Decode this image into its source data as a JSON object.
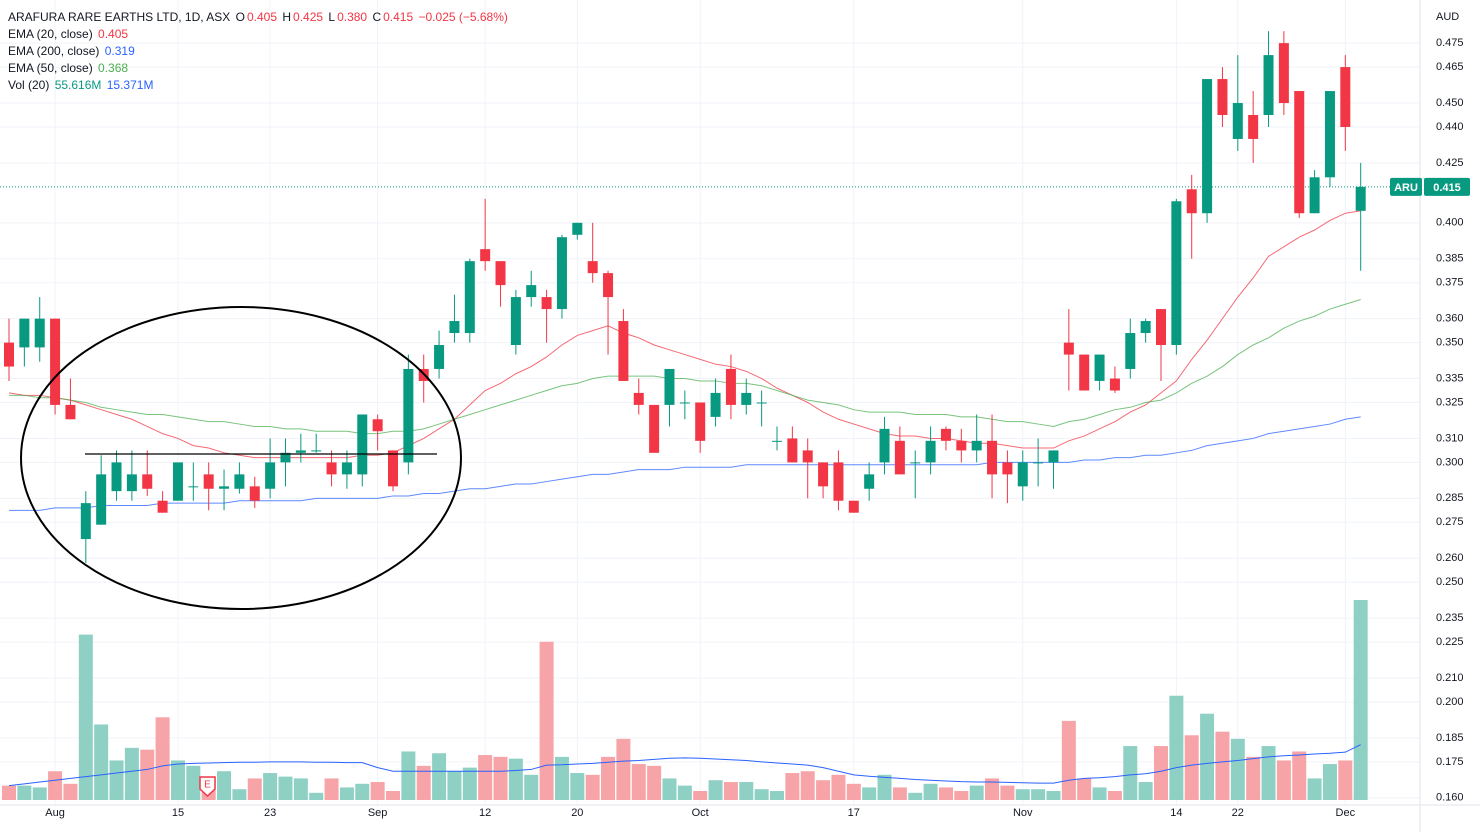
{
  "chart_data": {
    "type": "candlestick",
    "title": "ARAFURA RARE EARTHS LTD, 1D, ASX",
    "ohlc_legend": {
      "o_label": "O",
      "o": "0.405",
      "h_label": "H",
      "h": "0.425",
      "l_label": "L",
      "l": "0.380",
      "c_label": "C",
      "c": "0.415",
      "change": "−0.025 (−5.68%)"
    },
    "currency": "AUD",
    "symbol": "ARU",
    "last_price_label": "0.415",
    "earnings_marker": "E",
    "up_color": "#089981",
    "down_color": "#f23645",
    "volume_up_color": "#8fd0c5",
    "volume_down_color": "#f7a4a8",
    "grid": true,
    "categories": [
      null,
      null,
      null,
      "Aug",
      null,
      null,
      null,
      null,
      null,
      null,
      null,
      "15",
      null,
      null,
      null,
      null,
      null,
      "23",
      null,
      null,
      null,
      null,
      null,
      null,
      "Sep",
      null,
      null,
      null,
      null,
      null,
      null,
      "12",
      null,
      null,
      null,
      null,
      null,
      "20",
      null,
      null,
      null,
      null,
      null,
      null,
      null,
      "Oct",
      null,
      null,
      null,
      null,
      null,
      null,
      null,
      null,
      null,
      "17",
      null,
      null,
      null,
      null,
      null,
      null,
      null,
      null,
      null,
      null,
      "Nov",
      null,
      null,
      null,
      null,
      null,
      null,
      null,
      null,
      null,
      "14",
      null,
      null,
      null,
      "22",
      null,
      null,
      null,
      null,
      null,
      null,
      "Dec",
      null
    ],
    "open": [
      0.35,
      0.348,
      0.348,
      0.36,
      0.324,
      0.268,
      0.274,
      0.288,
      0.288,
      0.295,
      0.284,
      0.284,
      0.29,
      0.295,
      0.289,
      0.289,
      0.29,
      0.289,
      0.3,
      0.304,
      0.305,
      0.3,
      0.295,
      0.295,
      0.318,
      0.305,
      0.3,
      0.339,
      0.339,
      0.354,
      0.354,
      0.389,
      0.384,
      0.349,
      0.369,
      0.369,
      0.364,
      0.395,
      0.384,
      0.379,
      0.359,
      0.329,
      0.324,
      0.324,
      0.325,
      0.325,
      0.319,
      0.339,
      0.324,
      0.325,
      0.309,
      0.31,
      0.305,
      0.3,
      0.3,
      0.284,
      0.289,
      0.3,
      0.309,
      0.3,
      0.3,
      0.314,
      0.309,
      0.305,
      0.309,
      0.3,
      0.29,
      0.3,
      0.3,
      0.35,
      0.345,
      0.334,
      0.335,
      0.339,
      0.354,
      0.364,
      0.349,
      0.414,
      0.404,
      0.46,
      0.435,
      0.445,
      0.445,
      0.475,
      0.455,
      0.404,
      0.419,
      0.465,
      0.405
    ],
    "high": [
      0.36,
      0.36,
      0.369,
      0.36,
      0.335,
      0.288,
      0.303,
      0.305,
      0.305,
      0.305,
      0.288,
      0.3,
      0.3,
      0.3,
      0.297,
      0.3,
      0.294,
      0.31,
      0.31,
      0.312,
      0.312,
      0.305,
      0.305,
      0.32,
      0.32,
      0.305,
      0.345,
      0.345,
      0.355,
      0.37,
      0.385,
      0.41,
      0.384,
      0.372,
      0.38,
      0.372,
      0.395,
      0.4,
      0.4,
      0.38,
      0.364,
      0.335,
      0.324,
      0.339,
      0.33,
      0.325,
      0.335,
      0.345,
      0.335,
      0.33,
      0.315,
      0.315,
      0.31,
      0.3,
      0.305,
      0.284,
      0.3,
      0.319,
      0.315,
      0.305,
      0.315,
      0.315,
      0.314,
      0.32,
      0.32,
      0.305,
      0.305,
      0.31,
      0.305,
      0.364,
      0.345,
      0.345,
      0.34,
      0.36,
      0.36,
      0.364,
      0.41,
      0.42,
      0.46,
      0.465,
      0.47,
      0.455,
      0.48,
      0.48,
      0.455,
      0.422,
      0.455,
      0.47,
      0.425
    ],
    "low": [
      0.334,
      0.34,
      0.342,
      0.32,
      0.318,
      0.258,
      0.274,
      0.284,
      0.284,
      0.286,
      0.279,
      0.284,
      0.284,
      0.28,
      0.28,
      0.287,
      0.281,
      0.285,
      0.29,
      0.3,
      0.304,
      0.29,
      0.289,
      0.29,
      0.305,
      0.288,
      0.295,
      0.325,
      0.335,
      0.35,
      0.35,
      0.38,
      0.365,
      0.345,
      0.365,
      0.35,
      0.36,
      0.393,
      0.375,
      0.345,
      0.334,
      0.32,
      0.304,
      0.315,
      0.318,
      0.304,
      0.315,
      0.318,
      0.32,
      0.315,
      0.305,
      0.3,
      0.285,
      0.285,
      0.28,
      0.279,
      0.284,
      0.295,
      0.295,
      0.285,
      0.295,
      0.305,
      0.3,
      0.3,
      0.285,
      0.283,
      0.284,
      0.29,
      0.289,
      0.33,
      0.33,
      0.33,
      0.329,
      0.335,
      0.35,
      0.334,
      0.345,
      0.385,
      0.4,
      0.44,
      0.43,
      0.425,
      0.44,
      0.445,
      0.402,
      0.404,
      0.415,
      0.43,
      0.38
    ],
    "close": [
      0.34,
      0.36,
      0.36,
      0.324,
      0.318,
      0.283,
      0.295,
      0.3,
      0.295,
      0.289,
      0.279,
      0.3,
      0.29,
      0.289,
      0.29,
      0.295,
      0.284,
      0.3,
      0.304,
      0.305,
      0.305,
      0.295,
      0.3,
      0.32,
      0.313,
      0.29,
      0.339,
      0.334,
      0.349,
      0.359,
      0.384,
      0.384,
      0.374,
      0.369,
      0.374,
      0.364,
      0.394,
      0.4,
      0.379,
      0.369,
      0.334,
      0.324,
      0.304,
      0.339,
      0.325,
      0.309,
      0.329,
      0.324,
      0.329,
      0.325,
      0.309,
      0.3,
      0.3,
      0.29,
      0.284,
      0.279,
      0.295,
      0.314,
      0.295,
      0.3,
      0.309,
      0.309,
      0.305,
      0.309,
      0.295,
      0.295,
      0.3,
      0.3,
      0.305,
      0.345,
      0.33,
      0.345,
      0.33,
      0.354,
      0.359,
      0.349,
      0.409,
      0.404,
      0.46,
      0.445,
      0.45,
      0.435,
      0.47,
      0.45,
      0.404,
      0.419,
      0.455,
      0.44,
      0.415
    ],
    "volume": [
      4,
      4,
      3.5,
      8,
      4.5,
      46,
      21,
      11,
      14.5,
      14,
      23,
      11,
      9.5,
      6.5,
      8,
      3,
      6,
      7.5,
      6.5,
      6,
      2,
      6,
      3.5,
      4.5,
      5,
      2.5,
      13.5,
      9.5,
      13,
      8,
      9,
      12.5,
      12,
      11.5,
      7,
      44,
      12,
      7.5,
      7,
      12,
      17,
      10,
      9.5,
      6,
      4,
      2.5,
      5.5,
      5,
      5,
      3,
      2.5,
      7.5,
      8,
      5.5,
      7,
      4.5,
      3.5,
      7,
      3.5,
      2,
      4.5,
      3.5,
      2.5,
      4,
      6,
      4,
      3,
      3,
      2.5,
      22,
      6,
      3.5,
      2.5,
      15,
      5,
      15,
      29,
      18,
      24,
      19,
      17,
      12,
      15,
      11,
      13.5,
      6,
      10,
      11,
      55.616
    ],
    "indicators": [
      {
        "name": "EMA (20, close)",
        "value_label": "0.405",
        "color": "#f23645",
        "values": [
          0.329,
          0.328,
          0.328,
          0.327,
          0.326,
          0.324,
          0.322,
          0.32,
          0.318,
          0.315,
          0.312,
          0.31,
          0.307,
          0.306,
          0.304,
          0.303,
          0.302,
          0.302,
          0.302,
          0.302,
          0.302,
          0.302,
          0.302,
          0.303,
          0.303,
          0.304,
          0.307,
          0.31,
          0.314,
          0.318,
          0.324,
          0.33,
          0.333,
          0.337,
          0.34,
          0.344,
          0.349,
          0.353,
          0.355,
          0.357,
          0.354,
          0.352,
          0.349,
          0.347,
          0.345,
          0.343,
          0.341,
          0.34,
          0.338,
          0.335,
          0.331,
          0.328,
          0.325,
          0.321,
          0.318,
          0.316,
          0.314,
          0.312,
          0.311,
          0.311,
          0.31,
          0.31,
          0.309,
          0.308,
          0.308,
          0.307,
          0.306,
          0.306,
          0.306,
          0.309,
          0.311,
          0.314,
          0.317,
          0.321,
          0.324,
          0.329,
          0.334,
          0.343,
          0.351,
          0.36,
          0.369,
          0.377,
          0.386,
          0.39,
          0.394,
          0.397,
          0.401,
          0.404,
          0.405
        ]
      },
      {
        "name": "EMA (200, close)",
        "value_label": "0.319",
        "color": "#2962ff",
        "values": [
          0.28,
          0.28,
          0.28,
          0.281,
          0.281,
          0.281,
          0.282,
          0.282,
          0.282,
          0.282,
          0.283,
          0.283,
          0.283,
          0.283,
          0.283,
          0.284,
          0.284,
          0.284,
          0.284,
          0.284,
          0.285,
          0.285,
          0.285,
          0.285,
          0.285,
          0.286,
          0.286,
          0.287,
          0.287,
          0.288,
          0.289,
          0.289,
          0.29,
          0.291,
          0.291,
          0.292,
          0.293,
          0.294,
          0.295,
          0.295,
          0.296,
          0.297,
          0.297,
          0.297,
          0.298,
          0.298,
          0.298,
          0.298,
          0.299,
          0.299,
          0.299,
          0.299,
          0.299,
          0.299,
          0.299,
          0.299,
          0.299,
          0.299,
          0.299,
          0.299,
          0.299,
          0.299,
          0.299,
          0.299,
          0.3,
          0.3,
          0.3,
          0.3,
          0.3,
          0.3,
          0.301,
          0.301,
          0.302,
          0.302,
          0.303,
          0.303,
          0.304,
          0.305,
          0.307,
          0.308,
          0.309,
          0.31,
          0.312,
          0.313,
          0.314,
          0.315,
          0.316,
          0.318,
          0.319
        ]
      },
      {
        "name": "EMA (50, close)",
        "value_label": "0.368",
        "color": "#4caf50",
        "values": [
          0.328,
          0.328,
          0.327,
          0.327,
          0.326,
          0.325,
          0.323,
          0.322,
          0.321,
          0.32,
          0.32,
          0.319,
          0.318,
          0.317,
          0.317,
          0.316,
          0.315,
          0.315,
          0.314,
          0.314,
          0.313,
          0.313,
          0.313,
          0.312,
          0.312,
          0.313,
          0.313,
          0.314,
          0.316,
          0.318,
          0.32,
          0.322,
          0.324,
          0.326,
          0.328,
          0.33,
          0.332,
          0.333,
          0.335,
          0.336,
          0.336,
          0.336,
          0.336,
          0.335,
          0.335,
          0.334,
          0.334,
          0.333,
          0.333,
          0.332,
          0.33,
          0.328,
          0.326,
          0.325,
          0.324,
          0.322,
          0.321,
          0.321,
          0.321,
          0.32,
          0.32,
          0.32,
          0.319,
          0.319,
          0.318,
          0.317,
          0.317,
          0.316,
          0.315,
          0.317,
          0.318,
          0.32,
          0.322,
          0.323,
          0.325,
          0.326,
          0.329,
          0.333,
          0.336,
          0.34,
          0.345,
          0.349,
          0.352,
          0.356,
          0.359,
          0.361,
          0.364,
          0.366,
          0.368
        ]
      }
    ],
    "volume_ma": {
      "name": "Vol (20)",
      "value_label": "55.616M",
      "ma_label": "15.371M",
      "color": "#2962ff",
      "values": [
        4,
        4.5,
        5,
        5.5,
        6,
        6.5,
        7,
        7.5,
        8,
        8.5,
        9.5,
        10,
        10.2,
        10.3,
        10.4,
        10.5,
        10.5,
        10.6,
        10.6,
        10.6,
        10.5,
        10.5,
        10.4,
        10.4,
        9,
        8,
        8,
        8,
        8,
        8,
        8,
        8,
        8,
        8.2,
        8.5,
        9.7,
        9.8,
        10,
        10.2,
        10.5,
        10.8,
        11,
        11.3,
        11.6,
        11.7,
        11.6,
        11.4,
        11.2,
        11,
        10.6,
        10.3,
        10,
        9.7,
        9,
        8,
        7,
        6.6,
        6.3,
        6,
        5.7,
        5.5,
        5.3,
        5.1,
        5,
        5,
        4.9,
        4.8,
        4.7,
        4.7,
        5.5,
        6,
        6.2,
        6.5,
        7,
        7.3,
        8,
        9,
        9.7,
        10.2,
        10.6,
        11,
        11.5,
        12,
        12.3,
        12.5,
        12.8,
        13,
        13.3,
        15.371
      ]
    },
    "ylim": [
      0.157,
      0.493
    ],
    "yticks": [
      0.475,
      0.465,
      {
        "value": 0.45,
        "label": "0.450"
      },
      {
        "value": 0.44,
        "label": "0.440"
      },
      0.425,
      {
        "value": 0.4,
        "label": "0.400"
      },
      0.385,
      0.375,
      {
        "value": 0.36,
        "label": "0.360"
      },
      {
        "value": 0.35,
        "label": "0.350"
      },
      0.335,
      0.325,
      {
        "value": 0.31,
        "label": "0.310"
      },
      {
        "value": 0.3,
        "label": "0.300"
      },
      0.285,
      0.275,
      {
        "value": 0.26,
        "label": "0.260"
      },
      {
        "value": 0.25,
        "label": "0.250"
      },
      0.235,
      0.225,
      {
        "value": 0.21,
        "label": "0.210"
      },
      {
        "value": 0.2,
        "label": "0.200"
      },
      0.185,
      0.175,
      {
        "value": 0.16,
        "label": "0.160"
      }
    ]
  }
}
